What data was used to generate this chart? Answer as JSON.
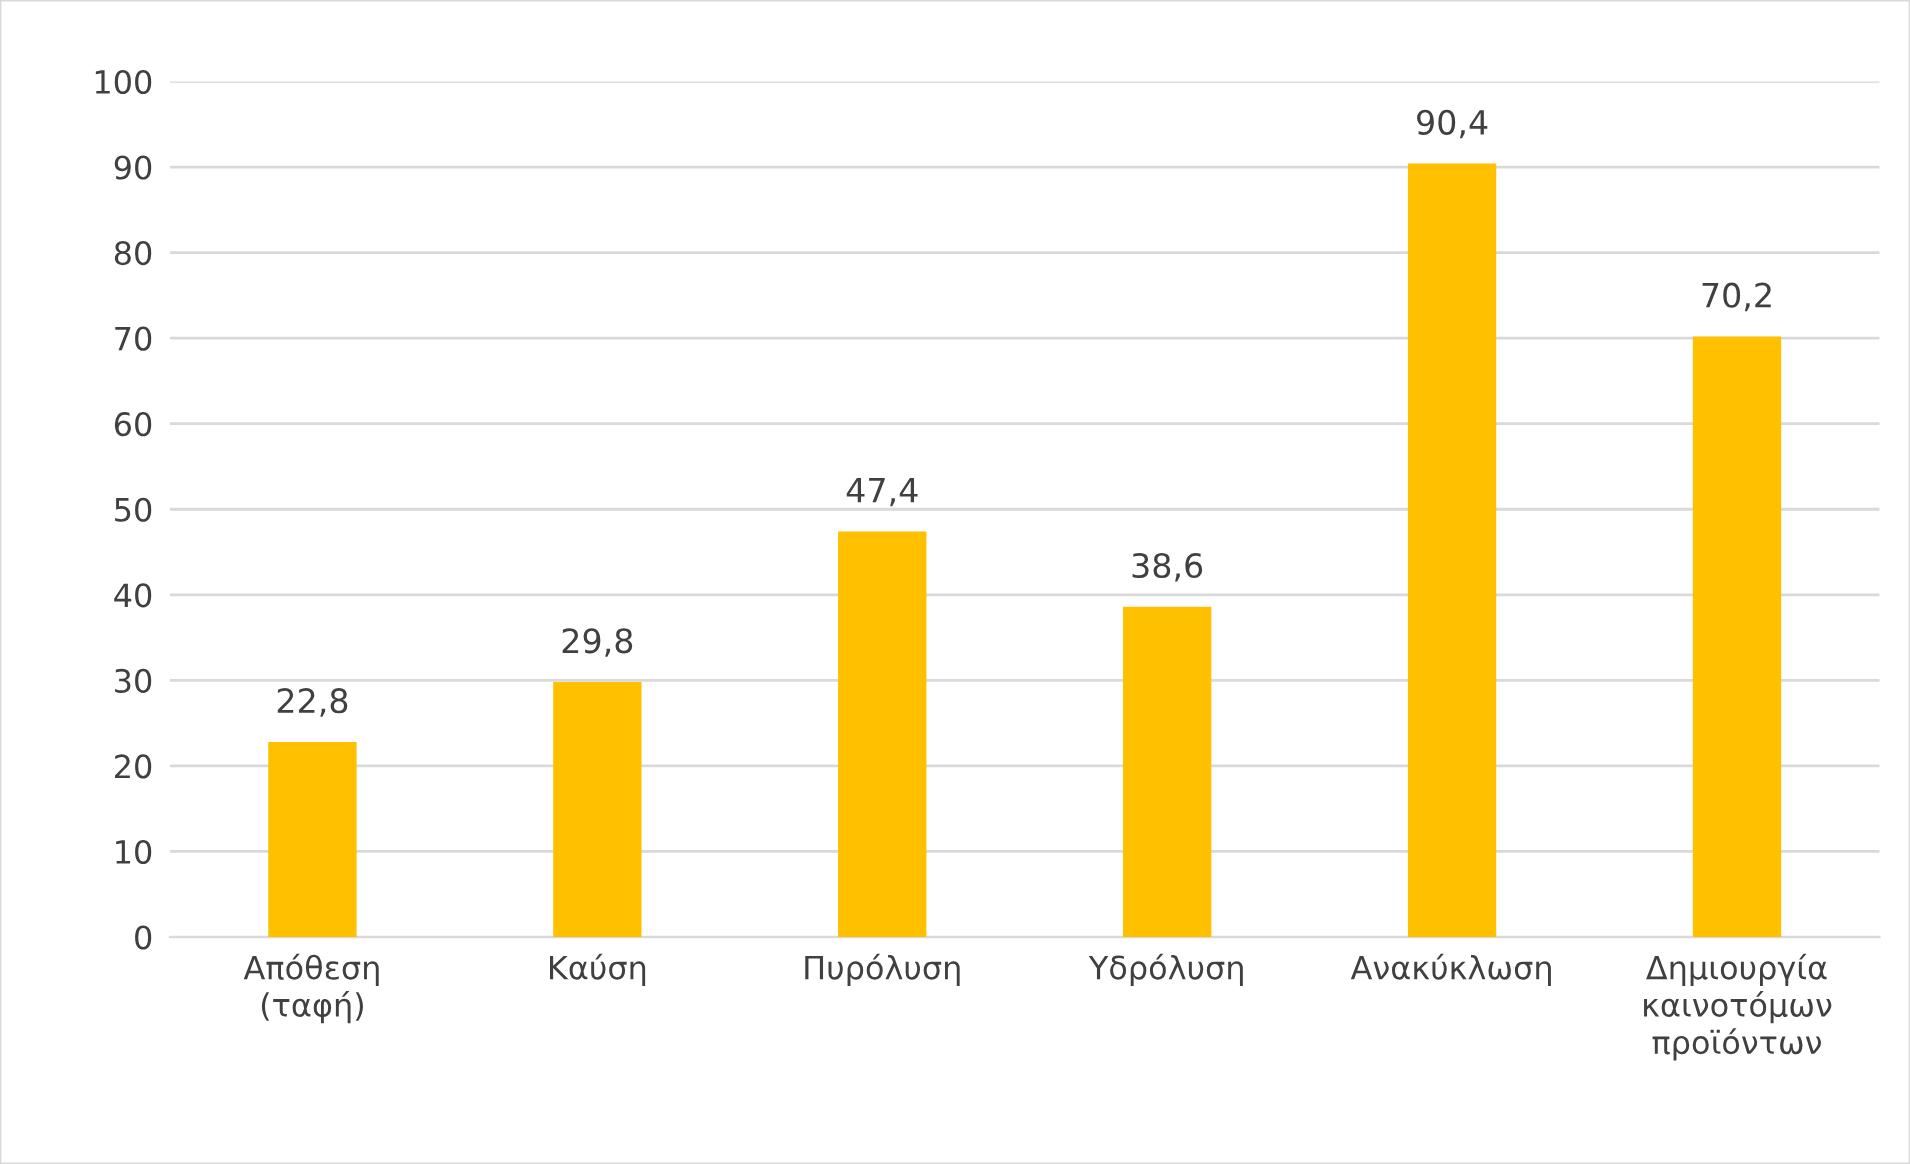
{
  "chart_data": {
    "type": "bar",
    "categories": [
      "Απόθεση\n(ταφή)",
      "Καύση",
      "Πυρόλυση",
      "Υδρόλυση",
      "Ανακύκλωση",
      "Δημιουργία\nκαινοτόμων\nπροϊόντων"
    ],
    "values": [
      22.8,
      29.8,
      47.4,
      38.6,
      90.4,
      70.2
    ],
    "value_labels": [
      "22,8",
      "29,8",
      "47,4",
      "38,6",
      "90,4",
      "70,2"
    ],
    "color": "#ffc000",
    "ylim": [
      0,
      100
    ],
    "yticks": [
      0,
      10,
      20,
      30,
      40,
      50,
      60,
      70,
      80,
      90,
      100
    ],
    "grid": "y"
  }
}
